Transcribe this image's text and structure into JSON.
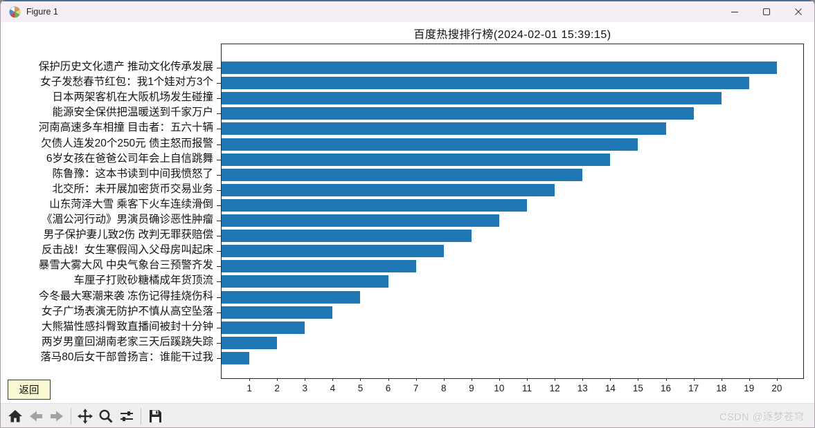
{
  "window": {
    "title": "Figure 1"
  },
  "chart_data": {
    "type": "bar",
    "orientation": "horizontal",
    "title": "百度热搜排行榜(2024-02-01 15:39:15)",
    "categories": [
      "保护历史文化遗产 推动文化传承发展",
      "女子发愁春节红包：我1个娃对方3个",
      "日本两架客机在大阪机场发生碰撞",
      "能源安全保供把温暖送到千家万户",
      "河南高速多车相撞 目击者：五六十辆",
      "欠债人连发20个250元 债主怒而报警",
      "6岁女孩在爸爸公司年会上自信跳舞",
      "陈鲁豫：这本书读到中间我愤怒了",
      "北交所：未开展加密货币交易业务",
      "山东菏泽大雪 乘客下火车连续滑倒",
      "《湄公河行动》男演员确诊恶性肿瘤",
      "男子保护妻儿致2伤 改判无罪获赔偿",
      "反击战！女生寒假闯入父母房叫起床",
      "暴雪大雾大风 中央气象台三预警齐发",
      "车厘子打败砂糖橘成年货顶流",
      "今冬最大寒潮来袭 冻伤记得挂烧伤科",
      "女子广场表演无防护不慎从高空坠落",
      "大熊猫性感抖臀致直播间被封十分钟",
      "两岁男童回湖南老家三天后蹊跷失踪",
      "落马80后女干部曾扬言：谁能干过我"
    ],
    "values": [
      20,
      19,
      18,
      17,
      16,
      15,
      14,
      13,
      12,
      11,
      10,
      9,
      8,
      7,
      6,
      5,
      4,
      3,
      2,
      1
    ],
    "xticks": [
      1,
      2,
      3,
      4,
      5,
      6,
      7,
      8,
      9,
      10,
      11,
      12,
      13,
      14,
      15,
      16,
      17,
      18,
      19,
      20
    ],
    "xlim": [
      0,
      21
    ],
    "grid": false,
    "legend": null,
    "bar_color": "#1f77b4"
  },
  "widgets": {
    "back_label": "返回"
  },
  "toolbar": {
    "buttons": [
      "home",
      "back",
      "forward",
      "pan",
      "zoom",
      "configure-subplots",
      "save"
    ]
  },
  "watermark": {
    "text": "CSDN @逐梦苍穹"
  },
  "colors": {
    "bar": "#1f77b4",
    "back_button_bg": "#fafad2",
    "titlebar_bg": "#f5eff5",
    "toolbar_bg": "#efefef",
    "accent_top": "#44709d"
  }
}
